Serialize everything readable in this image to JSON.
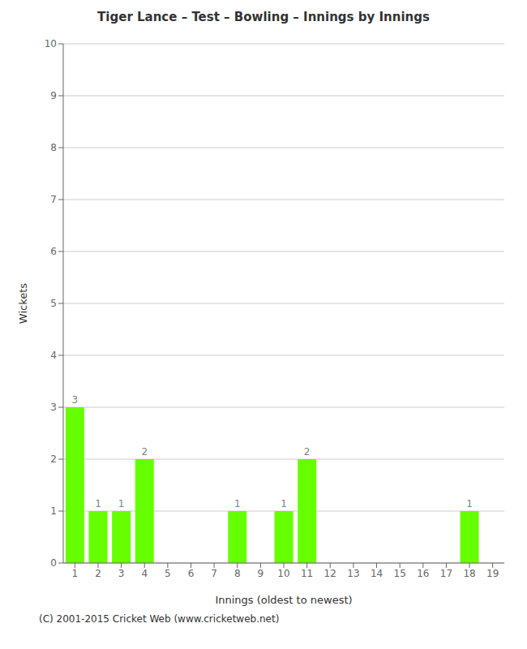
{
  "chart_data": {
    "type": "bar",
    "title": "Tiger Lance – Test – Bowling – Innings by Innings",
    "xlabel": "Innings (oldest to newest)",
    "ylabel": "Wickets",
    "annotations": [
      "(C) 2001-2015 Cricket Web (www.cricketweb.net)"
    ],
    "categories": [
      "1",
      "2",
      "3",
      "4",
      "5",
      "6",
      "7",
      "8",
      "9",
      "10",
      "11",
      "12",
      "13",
      "14",
      "15",
      "16",
      "17",
      "18",
      "19"
    ],
    "values": [
      3,
      1,
      1,
      2,
      0,
      0,
      0,
      1,
      0,
      1,
      2,
      0,
      0,
      0,
      0,
      0,
      0,
      1,
      0
    ],
    "color": "#66ff00",
    "ylim": [
      0,
      10
    ],
    "yticks": [
      0,
      1,
      2,
      3,
      4,
      5,
      6,
      7,
      8,
      9,
      10
    ],
    "grid": true,
    "data_labels": true
  }
}
